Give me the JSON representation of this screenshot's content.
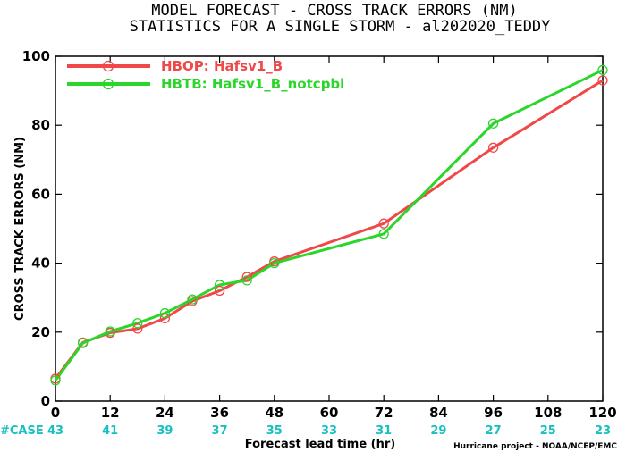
{
  "chart_data": {
    "type": "line",
    "title": "MODEL FORECAST - CROSS TRACK ERRORS (NM)",
    "subtitle": "STATISTICS FOR A SINGLE STORM - al202020_TEDDY",
    "xlabel": "Forecast lead time (hr)",
    "ylabel": "CROSS TRACK ERRORS (NM)",
    "xlim": [
      0,
      120
    ],
    "ylim": [
      0,
      100
    ],
    "x_ticks": [
      "0",
      "12",
      "24",
      "36",
      "48",
      "60",
      "72",
      "84",
      "96",
      "108",
      "120"
    ],
    "y_ticks": [
      "0",
      "20",
      "40",
      "60",
      "80",
      "100"
    ],
    "grid": false,
    "legend_position": "top-left",
    "series": [
      {
        "name": "HBOP: Hafsv1_B",
        "color": "#f04848",
        "x": [
          0,
          6,
          12,
          18,
          24,
          30,
          36,
          42,
          48,
          72,
          96,
          120
        ],
        "y": [
          6.5,
          17,
          19.8,
          21,
          24,
          29,
          32,
          36,
          40.5,
          51.5,
          73.5,
          93
        ]
      },
      {
        "name": "HBTB: Hafsv1_B_notcpbl",
        "color": "#2ad62a",
        "x": [
          0,
          6,
          12,
          18,
          24,
          30,
          36,
          42,
          48,
          72,
          96,
          120
        ],
        "y": [
          6,
          16.8,
          20.2,
          22.6,
          25.5,
          29.5,
          33.7,
          35,
          40,
          48.5,
          80.5,
          96
        ]
      }
    ],
    "case_counts": {
      "label": "#CASE",
      "color": "#18c0c0",
      "values": [
        "43",
        "41",
        "39",
        "37",
        "35",
        "33",
        "31",
        "29",
        "27",
        "25",
        "23"
      ]
    },
    "credit": "Hurricane project - NOAA/NCEP/EMC"
  }
}
